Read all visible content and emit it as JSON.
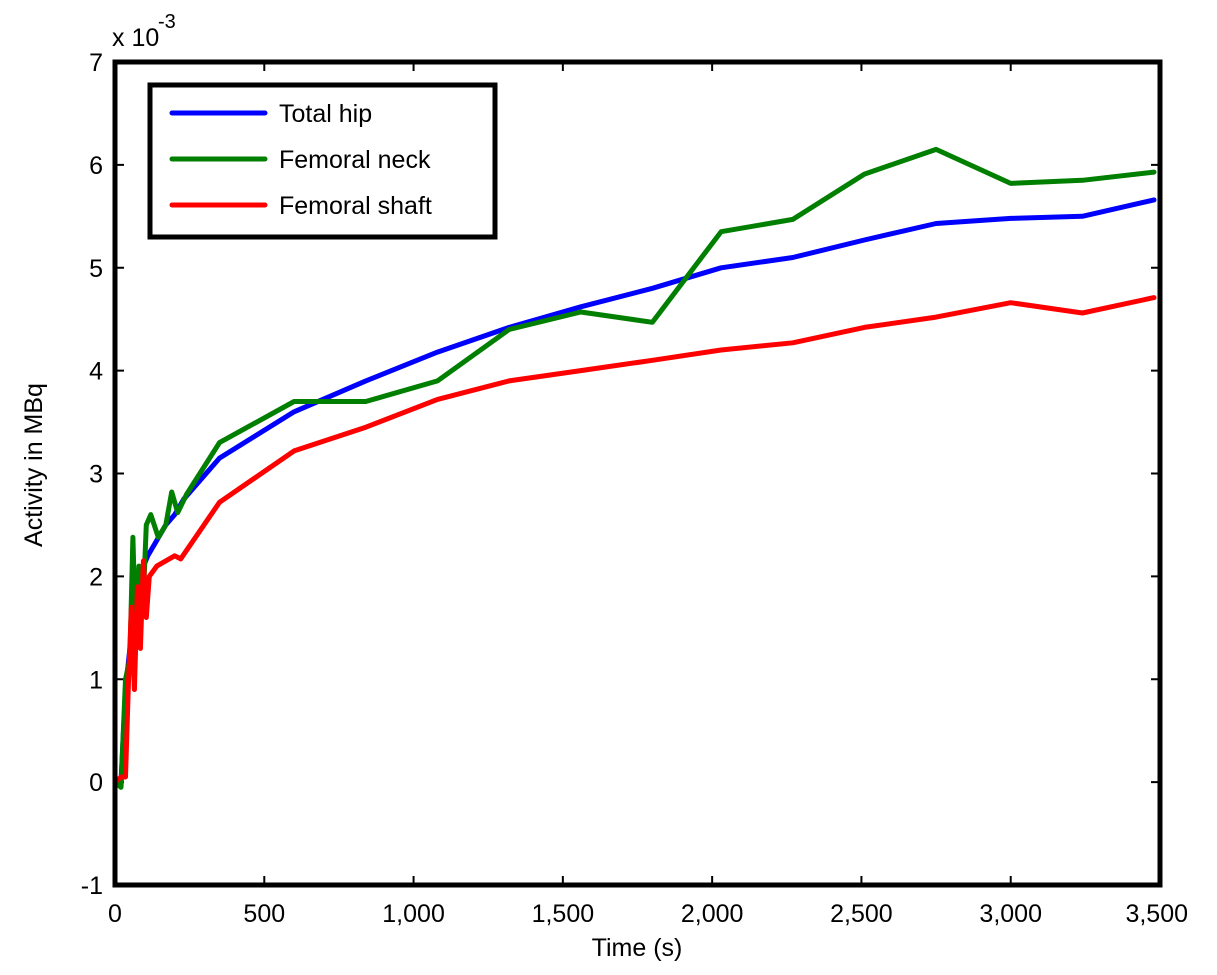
{
  "chart_data": {
    "type": "line",
    "xlabel": "Time (s)",
    "ylabel": "Activity in MBq",
    "y_multiplier_label": "x 10",
    "y_multiplier_exponent": "-3",
    "xlim": [
      0,
      3500
    ],
    "ylim": [
      -1,
      7
    ],
    "x_ticks": [
      0,
      500,
      1000,
      1500,
      2000,
      2500,
      3000,
      3500
    ],
    "x_tick_labels": [
      "0",
      "500",
      "1,000",
      "1,500",
      "2,000",
      "2,500",
      "3,000",
      "3,500"
    ],
    "y_ticks": [
      -1,
      0,
      1,
      2,
      3,
      4,
      5,
      6,
      7
    ],
    "y_tick_labels": [
      "-1",
      "0",
      "1",
      "2",
      "3",
      "4",
      "5",
      "6",
      "7"
    ],
    "grid": false,
    "legend_position": "top-left",
    "series": [
      {
        "name": "Total hip",
        "color": "#0000ff",
        "x": [
          0,
          20,
          35,
          50,
          65,
          80,
          95,
          110,
          140,
          170,
          200,
          230,
          350,
          600,
          840,
          1080,
          1320,
          1560,
          1800,
          2030,
          2270,
          2510,
          2750,
          3000,
          3240,
          3480
        ],
        "y": [
          0,
          0,
          0.9,
          1.3,
          1.7,
          1.9,
          2.1,
          2.2,
          2.35,
          2.5,
          2.6,
          2.75,
          3.15,
          3.6,
          3.9,
          4.18,
          4.42,
          4.62,
          4.8,
          5.0,
          5.1,
          5.27,
          5.43,
          5.48,
          5.5,
          5.66
        ]
      },
      {
        "name": "Femoral neck",
        "color": "#007f00",
        "x": [
          0,
          20,
          35,
          50,
          60,
          70,
          80,
          95,
          105,
          120,
          145,
          170,
          190,
          210,
          240,
          350,
          600,
          840,
          1080,
          1320,
          1560,
          1800,
          2030,
          2270,
          2510,
          2750,
          3000,
          3240,
          3480
        ],
        "y": [
          0,
          -0.05,
          1.0,
          1.2,
          2.38,
          1.3,
          2.1,
          1.8,
          2.5,
          2.6,
          2.38,
          2.5,
          2.82,
          2.62,
          2.8,
          3.3,
          3.7,
          3.7,
          3.9,
          4.4,
          4.57,
          4.47,
          5.35,
          5.47,
          5.91,
          6.15,
          5.82,
          5.85,
          5.93
        ]
      },
      {
        "name": "Femoral shaft",
        "color": "#ff0000",
        "x": [
          0,
          20,
          35,
          45,
          55,
          65,
          75,
          85,
          95,
          105,
          115,
          140,
          200,
          220,
          350,
          600,
          840,
          1080,
          1320,
          1560,
          1800,
          2030,
          2270,
          2510,
          2750,
          3000,
          3240,
          3480
        ],
        "y": [
          0,
          0.05,
          0.05,
          0.95,
          1.7,
          0.9,
          1.9,
          1.3,
          2.15,
          1.6,
          2.0,
          2.1,
          2.2,
          2.17,
          2.72,
          3.22,
          3.45,
          3.72,
          3.9,
          4.0,
          4.1,
          4.2,
          4.27,
          4.42,
          4.52,
          4.66,
          4.56,
          4.71
        ]
      }
    ]
  }
}
